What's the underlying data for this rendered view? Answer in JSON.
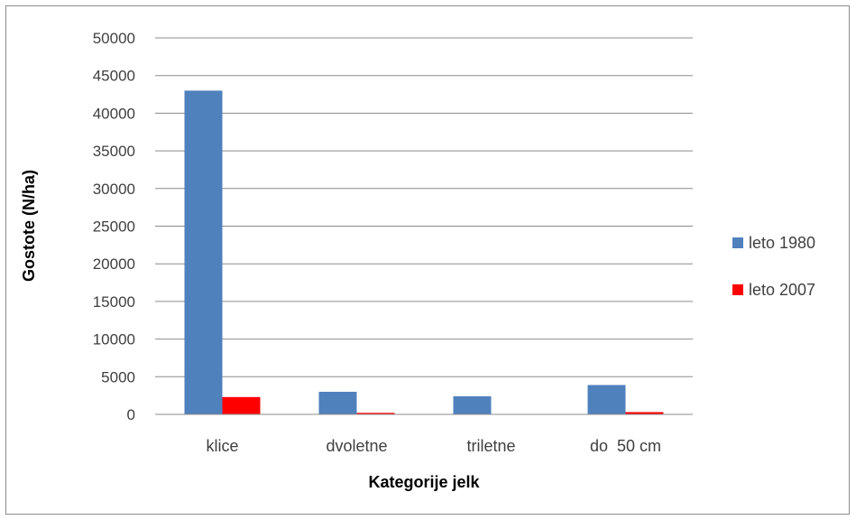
{
  "chart_data": {
    "type": "bar",
    "title": "",
    "xlabel": "Kategorije jelk",
    "ylabel": "Gostote (N/ha)",
    "categories": [
      "klice",
      "dvoletne",
      "triletne",
      "do  50 cm"
    ],
    "series": [
      {
        "name": "leto 1980",
        "values": [
          43000,
          3000,
          2400,
          3900
        ],
        "color": "#4f81bd"
      },
      {
        "name": "leto 2007",
        "values": [
          2300,
          200,
          0,
          300
        ],
        "color": "#ff0000"
      }
    ],
    "ylim": [
      0,
      50000
    ],
    "yticks": [
      "0",
      "5000",
      "10000",
      "15000",
      "20000",
      "25000",
      "30000",
      "35000",
      "40000",
      "45000",
      "50000"
    ],
    "grid": true,
    "legend": "right"
  }
}
